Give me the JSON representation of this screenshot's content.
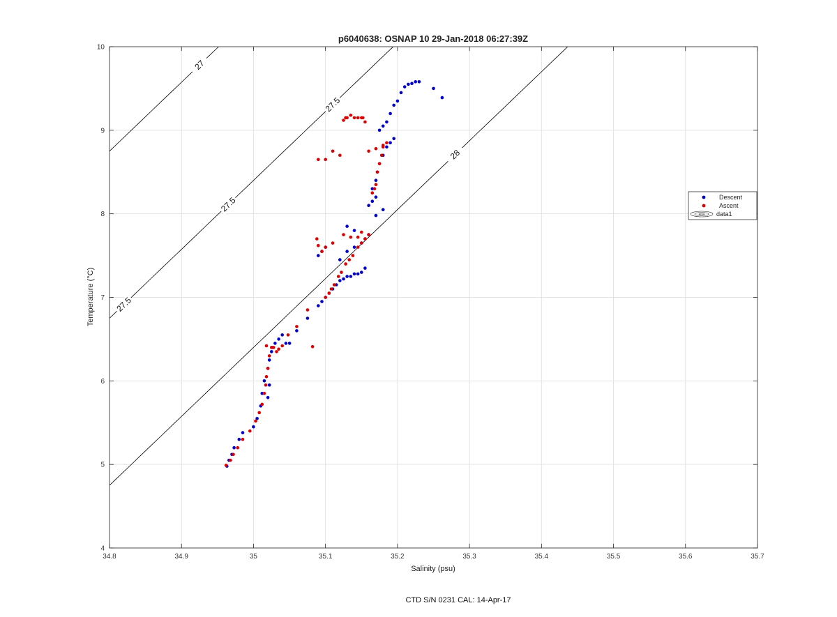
{
  "chart_data": {
    "type": "scatter",
    "title": "p6040638: OSNAP 10 29-Jan-2018 06:27:39Z",
    "xlabel": "Salinity (psu)",
    "ylabel": "Temperature (°C)",
    "xlim": [
      34.8,
      35.7
    ],
    "ylim": [
      4,
      10
    ],
    "xticks": [
      34.8,
      34.9,
      35,
      35.1,
      35.2,
      35.3,
      35.4,
      35.5,
      35.6,
      35.7
    ],
    "xtick_labels": [
      "34.8",
      "34.9",
      "35",
      "35.1",
      "35.2",
      "35.3",
      "35.4",
      "35.5",
      "35.6",
      "35.7"
    ],
    "yticks": [
      4,
      5,
      6,
      7,
      8,
      9,
      10
    ],
    "ytick_labels": [
      "4",
      "5",
      "6",
      "7",
      "8",
      "9",
      "10"
    ],
    "grid": true,
    "legend_position": "right",
    "legend": [
      "Descent",
      "Ascent",
      "data1"
    ],
    "footer": "CTD S/N 0231  CAL: 14-Apr-17",
    "series": [
      {
        "name": "Descent",
        "color": "#0000cc",
        "x": [
          34.963,
          34.966,
          34.97,
          34.973,
          34.98,
          34.985,
          35.0,
          35.005,
          35.01,
          35.012,
          35.015,
          35.02,
          35.022,
          35.025,
          35.02,
          35.022,
          35.026,
          35.03,
          35.035,
          35.04,
          35.045,
          35.05,
          35.06,
          35.075,
          35.09,
          35.095,
          35.1,
          35.105,
          35.11,
          35.115,
          35.12,
          35.125,
          35.13,
          35.135,
          35.14,
          35.145,
          35.15,
          35.155,
          35.12,
          35.13,
          35.14,
          35.15,
          35.155,
          35.16,
          35.1,
          35.095,
          35.09,
          35.13,
          35.14,
          35.16,
          35.165,
          35.17,
          35.165,
          35.17,
          35.172,
          35.175,
          35.18,
          35.185,
          35.19,
          35.195,
          35.175,
          35.18,
          35.185,
          35.19,
          35.195,
          35.2,
          35.205,
          35.21,
          35.215,
          35.22,
          35.225,
          35.23,
          35.25,
          35.262,
          35.18,
          35.17
        ],
        "y": [
          4.98,
          5.05,
          5.12,
          5.2,
          5.3,
          5.38,
          5.45,
          5.55,
          5.7,
          5.85,
          6.0,
          6.15,
          6.25,
          6.35,
          5.8,
          5.95,
          6.4,
          6.45,
          6.5,
          6.55,
          6.45,
          6.45,
          6.6,
          6.75,
          6.9,
          6.95,
          7.0,
          7.05,
          7.1,
          7.15,
          7.2,
          7.22,
          7.25,
          7.25,
          7.28,
          7.28,
          7.3,
          7.35,
          7.45,
          7.55,
          7.6,
          7.65,
          7.7,
          7.75,
          7.6,
          7.55,
          7.5,
          7.85,
          7.8,
          8.1,
          8.15,
          8.2,
          8.3,
          8.4,
          8.5,
          8.6,
          8.7,
          8.8,
          8.85,
          8.9,
          9.0,
          9.05,
          9.1,
          9.2,
          9.3,
          9.35,
          9.45,
          9.52,
          9.55,
          9.56,
          9.58,
          9.58,
          9.5,
          9.39,
          8.05,
          7.98
        ]
      },
      {
        "name": "Ascent",
        "color": "#dd0000",
        "x": [
          34.962,
          34.968,
          34.972,
          34.978,
          34.985,
          34.995,
          35.003,
          35.008,
          35.012,
          35.015,
          35.017,
          35.018,
          35.02,
          35.022,
          35.025,
          35.018,
          35.028,
          35.032,
          35.035,
          35.04,
          35.048,
          35.06,
          35.075,
          35.082,
          35.1,
          35.105,
          35.108,
          35.112,
          35.118,
          35.122,
          35.128,
          35.133,
          35.138,
          35.145,
          35.15,
          35.155,
          35.16,
          35.088,
          35.09,
          35.095,
          35.1,
          35.11,
          35.125,
          35.135,
          35.145,
          35.15,
          35.165,
          35.168,
          35.17,
          35.172,
          35.175,
          35.178,
          35.18,
          35.185,
          35.16,
          35.17,
          35.18,
          35.155,
          35.14,
          35.128,
          35.125,
          35.13,
          35.135,
          35.145,
          35.15,
          35.152,
          35.12,
          35.11,
          35.1,
          35.09
        ],
        "y": [
          4.99,
          5.05,
          5.12,
          5.2,
          5.3,
          5.4,
          5.52,
          5.62,
          5.72,
          5.85,
          5.95,
          6.05,
          6.15,
          6.3,
          6.4,
          6.42,
          6.4,
          6.35,
          6.38,
          6.42,
          6.55,
          6.65,
          6.85,
          6.41,
          7.0,
          7.05,
          7.1,
          7.15,
          7.25,
          7.3,
          7.4,
          7.45,
          7.5,
          7.6,
          7.65,
          7.7,
          7.75,
          7.7,
          7.62,
          7.55,
          7.6,
          7.65,
          7.75,
          7.72,
          7.72,
          7.78,
          8.25,
          8.3,
          8.35,
          8.5,
          8.6,
          8.7,
          8.8,
          8.85,
          8.75,
          8.78,
          8.82,
          9.1,
          9.15,
          9.15,
          9.12,
          9.15,
          9.18,
          9.15,
          9.15,
          9.15,
          8.7,
          8.75,
          8.65,
          8.65
        ]
      }
    ],
    "isopycnals": [
      {
        "sigma": 27.0,
        "label": "27",
        "color": "#000000"
      },
      {
        "sigma": 27.5,
        "label": "27.5",
        "color": "#000000"
      },
      {
        "sigma": 28.0,
        "label": "28",
        "color": "#000000"
      }
    ]
  }
}
